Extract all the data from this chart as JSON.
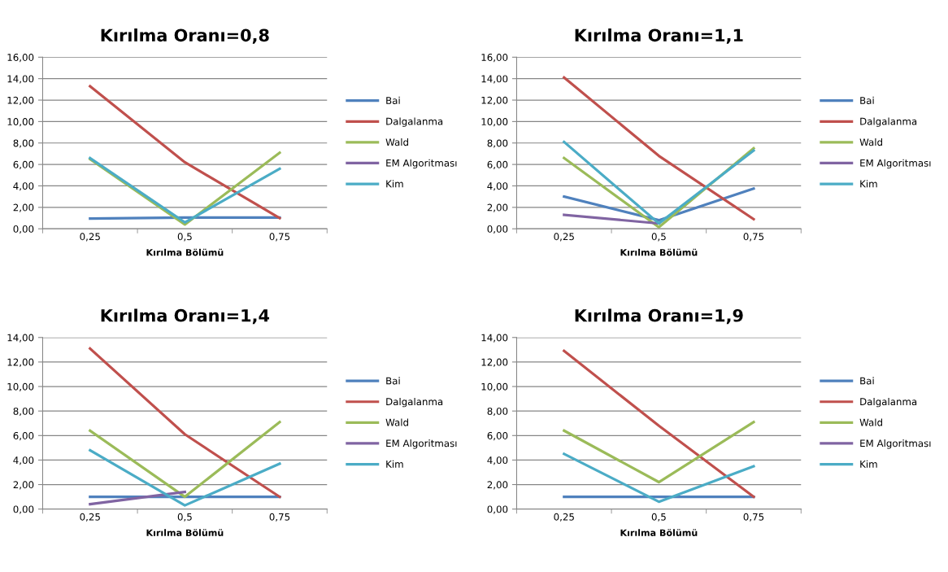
{
  "chart_data": [
    {
      "type": "line",
      "title": "Kırılma Oranı=0,8",
      "xlabel": "Kırılma Bölümü",
      "categories": [
        "0,25",
        "0,5",
        "0,75"
      ],
      "ylim": [
        0,
        16
      ],
      "yticks": [
        {
          "value": 0,
          "label": "0,00"
        },
        {
          "value": 2,
          "label": "2,00"
        },
        {
          "value": 4,
          "label": "4,00"
        },
        {
          "value": 6,
          "label": "6,00"
        },
        {
          "value": 8,
          "label": "8,00"
        },
        {
          "value": 10,
          "label": "10,00"
        },
        {
          "value": 12,
          "label": "12,00"
        },
        {
          "value": 14,
          "label": "14,00"
        },
        {
          "value": 16,
          "label": "16,00"
        }
      ],
      "grid": "y",
      "legend": "right",
      "series": [
        {
          "name": "Bai",
          "color": "#4f81bd",
          "values": [
            0.95,
            1.05,
            1.05
          ]
        },
        {
          "name": "Dalgalanma",
          "color": "#c0504d",
          "values": [
            13.3,
            6.2,
            1.0
          ]
        },
        {
          "name": "Wald",
          "color": "#9bbb59",
          "values": [
            6.5,
            0.4,
            7.1
          ]
        },
        {
          "name": "EM Algoritması",
          "color": "#8064a2",
          "values": [
            null,
            null,
            null
          ]
        },
        {
          "name": "Kim",
          "color": "#4bacc6",
          "values": [
            6.6,
            0.6,
            5.6
          ]
        }
      ]
    },
    {
      "type": "line",
      "title": "Kırılma Oranı=1,1",
      "xlabel": "Kırılma Bölümü",
      "categories": [
        "0,25",
        "0,5",
        "0,75"
      ],
      "ylim": [
        0,
        16
      ],
      "yticks": [
        {
          "value": 0,
          "label": "0,00"
        },
        {
          "value": 2,
          "label": "2,00"
        },
        {
          "value": 4,
          "label": "4,00"
        },
        {
          "value": 6,
          "label": "6,00"
        },
        {
          "value": 8,
          "label": "8,00"
        },
        {
          "value": 10,
          "label": "10,00"
        },
        {
          "value": 12,
          "label": "12,00"
        },
        {
          "value": 14,
          "label": "14,00"
        },
        {
          "value": 16,
          "label": "16,00"
        }
      ],
      "grid": "y",
      "legend": "right",
      "series": [
        {
          "name": "Bai",
          "color": "#4f81bd",
          "values": [
            3.0,
            0.8,
            3.75
          ]
        },
        {
          "name": "Dalgalanma",
          "color": "#c0504d",
          "values": [
            14.1,
            6.8,
            0.9
          ]
        },
        {
          "name": "Wald",
          "color": "#9bbb59",
          "values": [
            6.6,
            0.15,
            7.5
          ]
        },
        {
          "name": "EM Algoritması",
          "color": "#8064a2",
          "values": [
            1.3,
            0.5,
            null
          ]
        },
        {
          "name": "Kim",
          "color": "#4bacc6",
          "values": [
            8.1,
            0.5,
            7.3
          ]
        }
      ]
    },
    {
      "type": "line",
      "title": "Kırılma Oranı=1,4",
      "xlabel": "Kırılma Bölümü",
      "categories": [
        "0,25",
        "0,5",
        "0,75"
      ],
      "ylim": [
        0,
        14
      ],
      "yticks": [
        {
          "value": 0,
          "label": "0,00"
        },
        {
          "value": 2,
          "label": "2,00"
        },
        {
          "value": 4,
          "label": "4,00"
        },
        {
          "value": 6,
          "label": "6,00"
        },
        {
          "value": 8,
          "label": "8,00"
        },
        {
          "value": 10,
          "label": "10,00"
        },
        {
          "value": 12,
          "label": "12,00"
        },
        {
          "value": 14,
          "label": "14,00"
        }
      ],
      "grid": "y",
      "legend": "right",
      "series": [
        {
          "name": "Bai",
          "color": "#4f81bd",
          "values": [
            1.0,
            1.0,
            1.0
          ]
        },
        {
          "name": "Dalgalanma",
          "color": "#c0504d",
          "values": [
            13.1,
            6.1,
            1.0
          ]
        },
        {
          "name": "Wald",
          "color": "#9bbb59",
          "values": [
            6.4,
            1.0,
            7.1
          ]
        },
        {
          "name": "EM Algoritması",
          "color": "#8064a2",
          "values": [
            0.4,
            1.4,
            null
          ]
        },
        {
          "name": "Kim",
          "color": "#4bacc6",
          "values": [
            4.8,
            0.3,
            3.7
          ]
        }
      ]
    },
    {
      "type": "line",
      "title": "Kırılma Oranı=1,9",
      "xlabel": "Kırılma Bölümü",
      "categories": [
        "0,25",
        "0,5",
        "0,75"
      ],
      "ylim": [
        0,
        14
      ],
      "yticks": [
        {
          "value": 0,
          "label": "0,00"
        },
        {
          "value": 2,
          "label": "2,00"
        },
        {
          "value": 4,
          "label": "4,00"
        },
        {
          "value": 6,
          "label": "6,00"
        },
        {
          "value": 8,
          "label": "8,00"
        },
        {
          "value": 10,
          "label": "10,00"
        },
        {
          "value": 12,
          "label": "12,00"
        },
        {
          "value": 14,
          "label": "14,00"
        }
      ],
      "grid": "y",
      "legend": "right",
      "series": [
        {
          "name": "Bai",
          "color": "#4f81bd",
          "values": [
            1.0,
            1.0,
            1.0
          ]
        },
        {
          "name": "Dalgalanma",
          "color": "#c0504d",
          "values": [
            12.9,
            6.8,
            1.0
          ]
        },
        {
          "name": "Wald",
          "color": "#9bbb59",
          "values": [
            6.4,
            2.2,
            7.1
          ]
        },
        {
          "name": "EM Algoritması",
          "color": "#8064a2",
          "values": [
            null,
            null,
            null
          ]
        },
        {
          "name": "Kim",
          "color": "#4bacc6",
          "values": [
            4.5,
            0.6,
            3.5
          ]
        }
      ]
    }
  ]
}
